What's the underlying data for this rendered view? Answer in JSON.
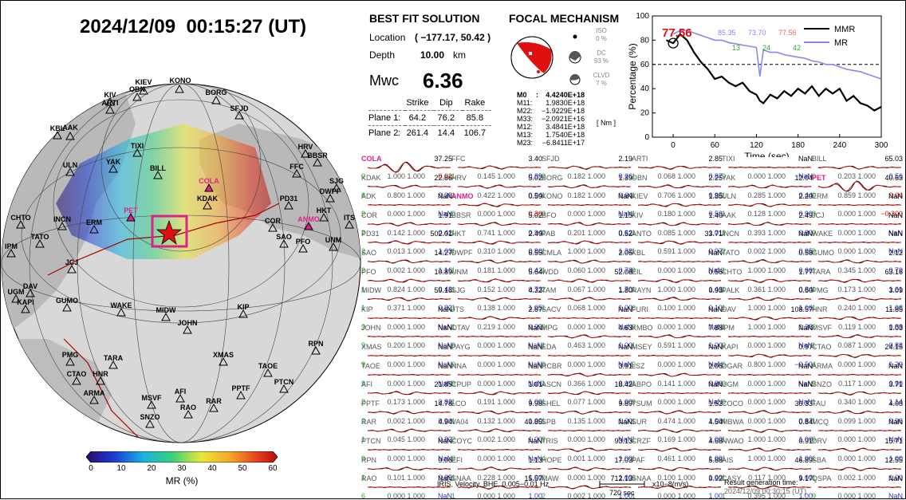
{
  "datetime": "2024/12/09  00:15:27 (UT)",
  "colorbar": {
    "label": "MR (%)",
    "ticks": [
      "0",
      "10",
      "20",
      "30",
      "40",
      "50",
      "60"
    ]
  },
  "map_labels": {
    "stations": [
      "KONO",
      "KIEV",
      "OBN",
      "KIV",
      "ARTI",
      "BORG",
      "SFJD",
      "KBL",
      "AAK",
      "TIXI",
      "YAK",
      "ULN",
      "BILL",
      "FFC",
      "HRV",
      "BBSR",
      "SJG",
      "DWPF",
      "PD31",
      "HKT",
      "COR",
      "SAO",
      "PFO",
      "ITS",
      "UNM",
      "CHTO",
      "INCN",
      "ERM",
      "TATO",
      "IPM",
      "JCJ",
      "DAV",
      "UGM",
      "KAPI",
      "GUMO",
      "WAKE",
      "MIDW",
      "KIP",
      "JOHN",
      "PMG",
      "CTAO",
      "HNR",
      "TARA",
      "XMAS",
      "TAOE",
      "PPTF",
      "PTCN",
      "RPN",
      "ARMA",
      "MSVF",
      "AFI",
      "RAR",
      "RAO",
      "SNZO"
    ],
    "highlighted": [
      "COLA",
      "PET",
      "ANMO"
    ],
    "epicenter": "KDAK"
  },
  "best_fit": {
    "title": "BEST FIT SOLUTION",
    "location_label": "Location",
    "location_value": "( −177.17,  50.42 )",
    "depth_label": "Depth",
    "depth_value": "10.00",
    "depth_unit": "km",
    "mwc_label": "Mwc",
    "mwc_value": "6.36",
    "headers": [
      "Strike",
      "Dip",
      "Rake"
    ],
    "planes": [
      {
        "label": "Plane 1:",
        "strike": "64.2",
        "dip": "76.2",
        "rake": "85.8"
      },
      {
        "label": "Plane 2:",
        "strike": "261.4",
        "dip": "14.4",
        "rake": "106.7"
      }
    ]
  },
  "focal": {
    "title": "FOCAL MECHANISM",
    "iso_label": "ISO",
    "iso_value": "0 %",
    "dc_label": "DC",
    "dc_value": "93 %",
    "clvd_label": "CLVD",
    "clvd_value": "7 %",
    "tensor": [
      [
        "M0",
        ":",
        "4.4240E+18"
      ],
      [
        "M11:",
        "",
        "1.9830E+18"
      ],
      [
        "M22:",
        "",
        "−1.9229E+18"
      ],
      [
        "M33:",
        "",
        "−2.0921E+16"
      ],
      [
        "M12:",
        "",
        "3.4841E+18"
      ],
      [
        "M13:",
        "",
        "1.7540E+18"
      ],
      [
        "M23:",
        "",
        "−6.8411E+17"
      ]
    ],
    "unit": "[ Nm ]"
  },
  "mr_chart": {
    "ylabel": "Percentage (%)",
    "xlabel": "Time (sec)",
    "yticks": [
      "0",
      "20",
      "40",
      "60",
      "80",
      "100"
    ],
    "xticks": [
      "0",
      "60",
      "120",
      "180",
      "240",
      "300"
    ],
    "legend": [
      "MMR",
      "MR"
    ],
    "best": "77.56",
    "top_values": [
      "85.35",
      "73.70",
      "77.56"
    ],
    "sub_values": [
      "13",
      "24",
      "42"
    ],
    "colors": {
      "mmr": "#000000",
      "mr": "#8888ee",
      "best": "#dd1111",
      "green": "#33aa33"
    }
  },
  "chart_data": {
    "type": "line",
    "xlabel": "Time (sec)",
    "ylabel": "Percentage (%)",
    "xlim": [
      -30,
      300
    ],
    "ylim": [
      0,
      100
    ],
    "reference_line": 60,
    "series": [
      {
        "name": "MMR",
        "x": [
          -10,
          0,
          10,
          20,
          30,
          40,
          50,
          60,
          70,
          80,
          90,
          100,
          110,
          120,
          125,
          130,
          140,
          150,
          160,
          170,
          180,
          190,
          200,
          210,
          220,
          230,
          240,
          250,
          260,
          270,
          280,
          290,
          300
        ],
        "values": [
          80,
          77.5,
          85,
          80,
          70,
          62,
          56,
          48,
          50,
          45,
          42,
          45,
          38,
          35,
          30,
          28,
          35,
          32,
          38,
          34,
          40,
          36,
          42,
          34,
          40,
          36,
          40,
          30,
          34,
          28,
          26,
          22,
          25
        ]
      },
      {
        "name": "MR",
        "x": [
          0,
          10,
          20,
          30,
          40,
          50,
          60,
          70,
          80,
          90,
          100,
          110,
          120,
          125,
          130,
          140,
          150,
          160,
          170,
          180,
          190,
          200,
          210,
          220,
          230,
          240,
          250,
          260,
          270,
          280,
          290,
          300
        ],
        "values": [
          85,
          88,
          88,
          86,
          84,
          82,
          80,
          80,
          78,
          77,
          76,
          75,
          74,
          50,
          72,
          70,
          70,
          68,
          67,
          66,
          65,
          63,
          62,
          60,
          60,
          58,
          56,
          55,
          54,
          52,
          50,
          48
        ]
      }
    ]
  },
  "stations": [
    {
      "code": "COLA",
      "hl": true,
      "amp": "37.25",
      "l": "0",
      "m": "1.000",
      "r": "0.02",
      "rr": true,
      "big": true
    },
    {
      "code": "FFC",
      "amp": "3.40",
      "l": "1",
      "m": "0.145",
      "r": "0.89"
    },
    {
      "code": "SFJD",
      "amp": "2.19",
      "l": "2",
      "m": "0.182",
      "r": "0.26"
    },
    {
      "code": "ARTI",
      "amp": "2.85",
      "l": "1",
      "m": "0.068",
      "r": "0.87"
    },
    {
      "code": "TIXI",
      "amp": "NaN",
      "l": "9",
      "m": "0.000",
      "r": "NaN"
    },
    {
      "code": "BILL",
      "amp": "65.03",
      "l": "0",
      "m": "0.203",
      "r": "0.56"
    },
    {
      "code": "KDAK",
      "amp": "22.86",
      "l": "6",
      "m": "0.800",
      "r": "0.36"
    },
    {
      "code": "HRV",
      "amp": "5.02",
      "l": "1",
      "m": "0.422",
      "r": "0.94"
    },
    {
      "code": "BORG",
      "amp": "1.39",
      "l": "1",
      "m": "0.182",
      "r": "0.64"
    },
    {
      "code": "OBN",
      "amp": "2.25",
      "l": "1",
      "m": "0.706",
      "r": "0.95"
    },
    {
      "code": "YAK",
      "amp": "12.04",
      "l": "1",
      "m": "0.285",
      "r": "0.44"
    },
    {
      "code": "PET",
      "hl": true,
      "amp": "40.63",
      "l": "0",
      "m": "0.859",
      "r": "0.04",
      "rr": true,
      "big": true
    },
    {
      "code": "ADK",
      "amp": "NaN",
      "l": "9",
      "m": "0.000",
      "r": "NaN"
    },
    {
      "code": "ANMO",
      "hl": true,
      "amp": "0.59",
      "l": "0",
      "m": "0.000",
      "r": "0.30",
      "rr": true
    },
    {
      "code": "KONO",
      "amp": "NaN",
      "l": "9",
      "m": "0.000",
      "r": "NaN"
    },
    {
      "code": "KIEV",
      "amp": "1.85",
      "l": "1",
      "m": "0.180",
      "r": "0.59"
    },
    {
      "code": "ULN",
      "amp": "2.20",
      "l": "1",
      "m": "0.128",
      "r": "0.90"
    },
    {
      "code": "ERM",
      "amp": "NaN",
      "l": "9",
      "m": "0.000",
      "r": "−0.300",
      "rr": true
    },
    {
      "code": "COR",
      "amp": "1.91",
      "l": "2",
      "m": "0.142",
      "r": "0.42"
    },
    {
      "code": "BBSR",
      "amp": "5.02",
      "l": "1",
      "m": "0.741",
      "r": "0.94"
    },
    {
      "code": "BFO",
      "amp": "1.15",
      "l": "2",
      "m": "0.201",
      "r": "0.62"
    },
    {
      "code": "KIV",
      "amp": "1.40",
      "l": "1",
      "m": "0.085",
      "r": "1.01"
    },
    {
      "code": "AAK",
      "amp": "2.49",
      "l": "1",
      "m": "0.393",
      "r": "0.80"
    },
    {
      "code": "JCJ",
      "amp": "NaN",
      "l": "9",
      "m": "0.000",
      "r": "NaN"
    },
    {
      "code": "PD31",
      "amp": "502.01",
      "l": "2",
      "m": "0.013",
      "r": "1.03"
    },
    {
      "code": "HKT",
      "amp": "2.49",
      "l": "1",
      "m": "0.310",
      "r": "0.80"
    },
    {
      "code": "PAB",
      "amp": "0.52",
      "l": "1",
      "m": "1.000",
      "r": "1.32"
    },
    {
      "code": "ANTO",
      "amp": "33.71",
      "l": "1",
      "m": "0.591",
      "r": "0.97"
    },
    {
      "code": "INCN",
      "amp": "NaN",
      "l": "2",
      "m": "0.002",
      "r": "0.95"
    },
    {
      "code": "WAKE",
      "amp": "NaN",
      "l": "9",
      "m": "0.000",
      "r": "NaN"
    },
    {
      "code": "SAO",
      "amp": "14.27",
      "l": "2",
      "m": "0.002",
      "r": "1.16"
    },
    {
      "code": "DWPF",
      "amp": "6.55",
      "l": "1",
      "m": "0.181",
      "r": "0.42"
    },
    {
      "code": "CMLA",
      "amp": "2.05",
      "l": "1",
      "m": "0.060",
      "r": "0.73"
    },
    {
      "code": "KBL",
      "amp": "NaN",
      "l": "9",
      "m": "0.000",
      "r": "NaN"
    },
    {
      "code": "TATO",
      "amp": "0.58",
      "l": "1",
      "m": "1.000",
      "r": "0.66"
    },
    {
      "code": "GUMO",
      "amp": "2.12",
      "l": "1",
      "m": "0.345",
      "r": "0.79"
    },
    {
      "code": "PFO",
      "amp": "10.89",
      "l": "1",
      "m": "0.824",
      "r": "0.43"
    },
    {
      "code": "UNM",
      "amp": "5.64",
      "l": "1",
      "m": "0.152",
      "r": "0.73"
    },
    {
      "code": "WDD",
      "amp": "52.08",
      "l": "2",
      "m": "0.067",
      "r": "1.70"
    },
    {
      "code": "EIL",
      "amp": "0.56",
      "l": "1",
      "m": "1.000",
      "r": "1.46"
    },
    {
      "code": "CHTO",
      "amp": "1.77",
      "l": "1",
      "m": "0.361",
      "r": "0.84"
    },
    {
      "code": "TARA",
      "amp": "63.16",
      "l": "1",
      "m": "0.173",
      "r": "1.61"
    },
    {
      "code": "MIDW",
      "amp": "59.16",
      "l": "1",
      "m": "0.371",
      "r": "0.82"
    },
    {
      "code": "SJG",
      "amp": "4.32",
      "l": "1",
      "m": "0.138",
      "r": "1.05"
    },
    {
      "code": "TAM",
      "amp": "1.80",
      "l": "1",
      "m": "0.068",
      "r": "1.00"
    },
    {
      "code": "RAYN",
      "amp": "0.93",
      "l": "6",
      "m": "0.100",
      "r": "0.10"
    },
    {
      "code": "PALK",
      "amp": "0.60",
      "l": "1",
      "m": "1.000",
      "r": "1.06"
    },
    {
      "code": "PMG",
      "amp": "3.09",
      "l": "1",
      "m": "0.240",
      "r": "1.08"
    },
    {
      "code": "KIP",
      "amp": "NaN",
      "l": "9",
      "m": "0.000",
      "r": "NaN"
    },
    {
      "code": "JTS",
      "amp": "2.87",
      "l": "1",
      "m": "0.219",
      "r": "0.93"
    },
    {
      "code": "SACV",
      "amp": "NaN",
      "l": "9",
      "m": "0.000",
      "r": "NaN"
    },
    {
      "code": "FURI",
      "amp": "NaN",
      "l": "9",
      "m": "0.000",
      "r": "NaN"
    },
    {
      "code": "DAV",
      "amp": "108.57",
      "l": "1",
      "m": "1.000",
      "r": "1.38"
    },
    {
      "code": "HNR",
      "amp": "11.85",
      "l": "2",
      "m": "0.119",
      "r": "0.88"
    },
    {
      "code": "JOHN",
      "amp": "NaN",
      "l": "9",
      "m": "0.200",
      "r": "NaN"
    },
    {
      "code": "OTAV",
      "amp": "NaN",
      "l": "9",
      "m": "0.000",
      "r": "NaN"
    },
    {
      "code": "MPG",
      "amp": "4.63",
      "l": "1",
      "m": "0.463",
      "r": "1.00"
    },
    {
      "code": "KMBO",
      "amp": "7.88",
      "l": "1",
      "m": "0.591",
      "r": "1.00"
    },
    {
      "code": "IPM",
      "amp": "NaN",
      "l": "9",
      "m": "0.000",
      "r": "NaN"
    },
    {
      "code": "MSVF",
      "amp": "1.03",
      "l": "1",
      "m": "0.087",
      "r": "0.83"
    },
    {
      "code": "XMAS",
      "amp": "NaN",
      "l": "9",
      "m": "0.000",
      "r": "NaN"
    },
    {
      "code": "PAYG",
      "amp": "NaN",
      "l": "9",
      "m": "0.000",
      "r": "NaN"
    },
    {
      "code": "EDA",
      "amp": "NaN",
      "l": "9",
      "m": "0.000",
      "r": "NaN"
    },
    {
      "code": "MSEY",
      "amp": "NaN",
      "l": "9",
      "m": "0.000",
      "r": "NaN"
    },
    {
      "code": "KAPI",
      "amp": "0.97",
      "l": "6",
      "m": "0.800",
      "r": "−0.50"
    },
    {
      "code": "CTAO",
      "amp": "24.15",
      "l": "4",
      "m": "0.000",
      "r": "1.29"
    },
    {
      "code": "TAOE",
      "amp": "NaN",
      "l": "9",
      "m": "0.000",
      "r": "NaN"
    },
    {
      "code": "NNA",
      "amp": "NaN",
      "l": "9",
      "m": "0.000",
      "r": "NaN"
    },
    {
      "code": "RCBR",
      "amp": "3.91",
      "l": "1",
      "m": "0.366",
      "r": "0.99"
    },
    {
      "code": "LSZ",
      "amp": "2.06",
      "l": "1",
      "m": "0.141",
      "r": "0.86"
    },
    {
      "code": "DGAR",
      "amp": "NaN",
      "l": "9",
      "m": "0.000",
      "r": "NaN"
    },
    {
      "code": "ARMA",
      "amp": "NaN",
      "l": "9",
      "m": "0.117",
      "r": "0.90"
    },
    {
      "code": "AFI",
      "amp": "21.85",
      "l": "2",
      "m": "0.173",
      "r": "0.82"
    },
    {
      "code": "CPUP",
      "amp": "1.01",
      "l": "1",
      "m": "0.191",
      "r": "1.00"
    },
    {
      "code": "ASCN",
      "amp": "18.42",
      "l": "1",
      "m": "0.077",
      "r": "1.00"
    },
    {
      "code": "ABPO",
      "amp": "NaN",
      "l": "9",
      "m": "0.000",
      "r": "NaN"
    },
    {
      "code": "UGM",
      "amp": "NaN",
      "l": "9",
      "m": "0.000",
      "r": "NaN"
    },
    {
      "code": "SNZO",
      "amp": "3.71",
      "l": "1",
      "m": "0.340",
      "r": "1.14"
    },
    {
      "code": "PPTF",
      "amp": "14.78",
      "l": "2",
      "m": "0.002",
      "r": "0.90"
    },
    {
      "code": "LCO",
      "amp": "9.98",
      "l": "1",
      "m": "0.132",
      "r": "1.00"
    },
    {
      "code": "SHEL",
      "amp": "9.89",
      "l": "1",
      "m": "0.135",
      "r": "1.00"
    },
    {
      "code": "TSUM",
      "amp": "1.52",
      "l": "1",
      "m": "0.474",
      "r": "1.00"
    },
    {
      "code": "COCO",
      "amp": "36.33",
      "l": "4",
      "m": "0.000",
      "r": "0.87"
    },
    {
      "code": "TAU",
      "amp": "4.08",
      "l": "1",
      "m": "0.099",
      "r": "0.96"
    },
    {
      "code": "RAR",
      "amp": "4.94",
      "l": "1",
      "m": "0.045",
      "r": "0.82"
    },
    {
      "code": "VA04",
      "amp": "40.85",
      "l": "2",
      "m": "0.002",
      "r": "1.00"
    },
    {
      "code": "SPB",
      "amp": "NaN",
      "l": "9",
      "m": "0.000",
      "r": "NaN"
    },
    {
      "code": "SUR",
      "amp": "4.54",
      "l": "1",
      "m": "0.169",
      "r": "1.00"
    },
    {
      "code": "MBWA",
      "amp": "0.84",
      "l": "1",
      "m": "1.000",
      "r": "1.00"
    },
    {
      "code": "MCQ",
      "amp": "NaN",
      "l": "9",
      "m": "0.000",
      "r": "NaN"
    },
    {
      "code": "PTCN",
      "amp": "NaN",
      "l": "9",
      "m": "0.000",
      "r": "NaN"
    },
    {
      "code": "COYC",
      "amp": "NaN",
      "l": "9",
      "m": "0.000",
      "r": "NaN"
    },
    {
      "code": "TRIS",
      "amp": "93.13",
      "l": "4",
      "m": "0.001",
      "r": "1.00"
    },
    {
      "code": "CRZF",
      "amp": "4.68",
      "l": "1",
      "m": "0.461",
      "r": "1.00"
    },
    {
      "code": "NWAO",
      "amp": "0.91",
      "l": "1",
      "m": "1.000",
      "r": "1.00"
    },
    {
      "code": "DRV",
      "amp": "15.71",
      "l": "1",
      "m": "0.000",
      "r": "1.00"
    },
    {
      "code": "RPN",
      "amp": "9.06",
      "l": "1",
      "m": "0.101",
      "r": "0.85"
    },
    {
      "code": "EFI",
      "amp": "1.13",
      "l": "1",
      "m": "0.228",
      "r": "1.00"
    },
    {
      "code": "HOPE",
      "amp": "17.03",
      "l": "2",
      "m": "0.000",
      "r": "1.00"
    },
    {
      "code": "PAF",
      "amp": "5.88",
      "l": "6",
      "m": "0.100",
      "r": "1.00"
    },
    {
      "code": "AIS",
      "amp": "46.89",
      "l": "1",
      "m": "0.117",
      "r": "1.00"
    },
    {
      "code": "SBA",
      "amp": "12.55",
      "l": "1",
      "m": "0.002",
      "r": "1.00"
    },
    {
      "code": "RAO",
      "amp": "NaN",
      "l": "6",
      "m": "0.000",
      "r": "NaN"
    },
    {
      "code": "SNAA",
      "amp": "15.57",
      "l": "1",
      "m": "0.000",
      "r": "1.00"
    },
    {
      "code": "MAW",
      "amp": "712.13",
      "l": "2",
      "m": "0.002",
      "r": "1.00"
    },
    {
      "code": "SNAA",
      "amp": "0.92",
      "l": "1",
      "m": "0.000",
      "r": "1.00"
    },
    {
      "code": "CASY",
      "amp": "9.17",
      "l": "1",
      "m": "0.395",
      "r": "1.00"
    },
    {
      "code": "QSPA",
      "amp": "NaN",
      "l": "9",
      "m": "0.000",
      "r": "NaN"
    }
  ],
  "footer": {
    "info": "IRIS, Velocity,   BHE,  0.005−0.01 Hz",
    "scale": "720 sec",
    "units": "x10−8(m/s)",
    "result_label": "Result generation time:",
    "result_time": "2024/12/09  00:30:15 (UT)"
  }
}
